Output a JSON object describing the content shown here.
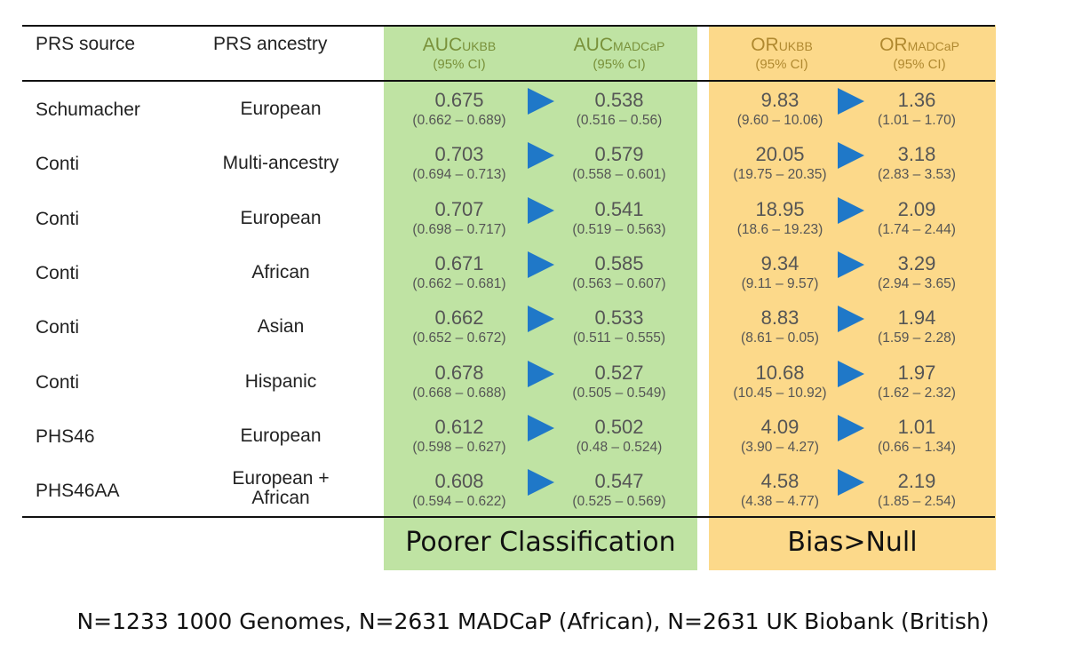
{
  "header": {
    "prs_source": "PRS source",
    "prs_ancestry": "PRS ancestry",
    "auc_ukbb_main": "AUC",
    "auc_ukbb_sub": "UKBB",
    "auc_ukbb_ci": "(95% CI)",
    "auc_madcap_main": "AUC",
    "auc_madcap_sub": "MADCaP",
    "auc_madcap_ci": "(95% CI)",
    "or_ukbb_main": "OR",
    "or_ukbb_sub": "UKBB",
    "or_ukbb_ci": "(95% CI)",
    "or_madcap_main": "OR",
    "or_madcap_sub": "MADCaP",
    "or_madcap_ci": "(95% CI)"
  },
  "rows": [
    {
      "source": "Schumacher",
      "ancestry": "European",
      "auc_ukbb": "0.675",
      "auc_ukbb_ci": "(0.662 – 0.689)",
      "auc_madcap": "0.538",
      "auc_madcap_ci": "(0.516 – 0.56)",
      "or_ukbb": "9.83",
      "or_ukbb_ci": "(9.60 – 10.06)",
      "or_madcap": "1.36",
      "or_madcap_ci": "(1.01 – 1.70)"
    },
    {
      "source": "Conti",
      "ancestry": "Multi-ancestry",
      "auc_ukbb": "0.703",
      "auc_ukbb_ci": "(0.694 – 0.713)",
      "auc_madcap": "0.579",
      "auc_madcap_ci": "(0.558 – 0.601)",
      "or_ukbb": "20.05",
      "or_ukbb_ci": "(19.75 – 20.35)",
      "or_madcap": "3.18",
      "or_madcap_ci": "(2.83 – 3.53)"
    },
    {
      "source": "Conti",
      "ancestry": "European",
      "auc_ukbb": "0.707",
      "auc_ukbb_ci": "(0.698 – 0.717)",
      "auc_madcap": "0.541",
      "auc_madcap_ci": "(0.519 – 0.563)",
      "or_ukbb": "18.95",
      "or_ukbb_ci": "(18.6 – 19.23)",
      "or_madcap": "2.09",
      "or_madcap_ci": "(1.74 – 2.44)"
    },
    {
      "source": "Conti",
      "ancestry": "African",
      "auc_ukbb": "0.671",
      "auc_ukbb_ci": "(0.662 – 0.681)",
      "auc_madcap": "0.585",
      "auc_madcap_ci": "(0.563 – 0.607)",
      "or_ukbb": "9.34",
      "or_ukbb_ci": "(9.11 – 9.57)",
      "or_madcap": "3.29",
      "or_madcap_ci": "(2.94 – 3.65)"
    },
    {
      "source": "Conti",
      "ancestry": "Asian",
      "auc_ukbb": "0.662",
      "auc_ukbb_ci": "(0.652 – 0.672)",
      "auc_madcap": "0.533",
      "auc_madcap_ci": "(0.511 – 0.555)",
      "or_ukbb": "8.83",
      "or_ukbb_ci": "(8.61 – 0.05)",
      "or_madcap": "1.94",
      "or_madcap_ci": "(1.59 – 2.28)"
    },
    {
      "source": "Conti",
      "ancestry": "Hispanic",
      "auc_ukbb": "0.678",
      "auc_ukbb_ci": "(0.668 – 0.688)",
      "auc_madcap": "0.527",
      "auc_madcap_ci": "(0.505 – 0.549)",
      "or_ukbb": "10.68",
      "or_ukbb_ci": "(10.45 – 10.92)",
      "or_madcap": "1.97",
      "or_madcap_ci": "(1.62 – 2.32)"
    },
    {
      "source": "PHS46",
      "ancestry": "European",
      "auc_ukbb": "0.612",
      "auc_ukbb_ci": "(0.598 – 0.627)",
      "auc_madcap": "0.502",
      "auc_madcap_ci": "(0.48 – 0.524)",
      "or_ukbb": "4.09",
      "or_ukbb_ci": "(3.90 – 4.27)",
      "or_madcap": "1.01",
      "or_madcap_ci": "(0.66 – 1.34)"
    },
    {
      "source": "PHS46AA",
      "ancestry": "European + African",
      "auc_ukbb": "0.608",
      "auc_ukbb_ci": "(0.594 – 0.622)",
      "auc_madcap": "0.547",
      "auc_madcap_ci": "(0.525 – 0.569)",
      "or_ukbb": "4.58",
      "or_ukbb_ci": "(4.38 – 4.77)",
      "or_madcap": "2.19",
      "or_madcap_ci": "(1.85 – 2.54)"
    }
  ],
  "labels": {
    "green_footer": "Poorer Classification",
    "orange_footer": "Bias>Null"
  },
  "footnote": "N=1233 1000 Genomes, N=2631 MADCaP (African), N=2631 UK Biobank (British)",
  "colors": {
    "green_band": "#bfe3a3",
    "orange_band": "#fcd98a",
    "arrow": "#1f78c8"
  }
}
